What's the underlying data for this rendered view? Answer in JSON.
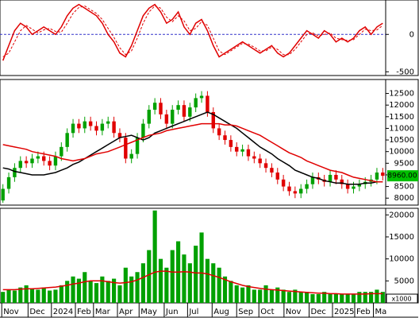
{
  "chart_data": [
    {
      "type": "line",
      "xlim": [
        0,
        66
      ],
      "ylim": [
        -550,
        460
      ],
      "yticks": [
        0,
        -500
      ],
      "hline": 0,
      "hline_color": "#3333cc",
      "series": [
        {
          "color": "#e00000",
          "values": [
            -350,
            -150,
            50,
            150,
            100,
            0,
            50,
            100,
            50,
            0,
            100,
            250,
            350,
            400,
            350,
            300,
            250,
            150,
            0,
            -100,
            -250,
            -300,
            -150,
            50,
            250,
            350,
            400,
            300,
            150,
            200,
            300,
            100,
            0,
            150,
            200,
            50,
            -150,
            -300,
            -250,
            -200,
            -150,
            -100,
            -150,
            -200,
            -250,
            -200,
            -150,
            -250,
            -300,
            -250,
            -150,
            -50,
            50,
            0,
            -50,
            50,
            0,
            -100,
            -50,
            -100,
            -50,
            50,
            100,
            0,
            100,
            150
          ]
        },
        {
          "color": "#e00000",
          "dash": true,
          "values": [
            -300,
            -250,
            -100,
            50,
            120,
            70,
            20,
            60,
            80,
            40,
            30,
            150,
            280,
            360,
            380,
            330,
            280,
            200,
            80,
            -40,
            -180,
            -270,
            -220,
            -50,
            150,
            300,
            380,
            350,
            230,
            170,
            250,
            180,
            50,
            80,
            170,
            120,
            -50,
            -220,
            -270,
            -220,
            -170,
            -120,
            -130,
            -170,
            -220,
            -220,
            -170,
            -200,
            -270,
            -270,
            -200,
            -100,
            0,
            20,
            -20,
            0,
            20,
            -50,
            -70,
            -80,
            -70,
            0,
            70,
            50,
            60,
            120
          ]
        }
      ]
    },
    {
      "type": "candlestick",
      "xlim": [
        0,
        66
      ],
      "ylim": [
        7700,
        13100
      ],
      "yticks": [
        8000,
        8500,
        9000,
        9500,
        10000,
        10500,
        11000,
        11500,
        12000,
        12500
      ],
      "up_color": "#00a000",
      "down_color": "#e00000",
      "open": [
        7900,
        8400,
        8900,
        9300,
        9600,
        9500,
        9700,
        9800,
        9600,
        9400,
        9800,
        10200,
        10800,
        11200,
        11000,
        11300,
        11100,
        10900,
        11200,
        11300,
        10800,
        10600,
        9700,
        9900,
        10600,
        11200,
        11800,
        12100,
        11600,
        11200,
        11800,
        12000,
        11500,
        11900,
        12300,
        12400,
        11700,
        11000,
        10700,
        10500,
        10200,
        10000,
        10100,
        9800,
        9700,
        9500,
        9300,
        9100,
        8800,
        8500,
        8300,
        8200,
        8400,
        8600,
        8900,
        8800,
        8700,
        9000,
        8800,
        8600,
        8400,
        8500,
        8600,
        8700,
        8800,
        9100
      ],
      "high": [
        8600,
        9100,
        9500,
        9800,
        9800,
        9900,
        10000,
        10000,
        9800,
        10000,
        10400,
        11000,
        11400,
        11400,
        11500,
        11500,
        11300,
        11400,
        11500,
        11500,
        11000,
        10800,
        10100,
        10800,
        11400,
        12000,
        12300,
        12300,
        11800,
        12000,
        12200,
        12200,
        12100,
        12500,
        12600,
        12600,
        11900,
        11200,
        10900,
        10700,
        10400,
        10300,
        10300,
        10000,
        9900,
        9700,
        9500,
        9300,
        9000,
        8700,
        8500,
        8600,
        8800,
        9100,
        9100,
        9000,
        9200,
        9200,
        9000,
        8800,
        8700,
        8800,
        8900,
        9000,
        9300,
        9300
      ],
      "low": [
        7800,
        8200,
        8700,
        9100,
        9300,
        9300,
        9500,
        9400,
        9200,
        9200,
        9600,
        10000,
        10600,
        10800,
        10800,
        10900,
        10700,
        10700,
        11000,
        10600,
        10400,
        9500,
        9500,
        9700,
        10400,
        11000,
        11600,
        11400,
        11000,
        11000,
        11600,
        11300,
        11300,
        11700,
        12100,
        11500,
        10800,
        10500,
        10300,
        10000,
        9800,
        9800,
        9600,
        9500,
        9300,
        9100,
        8900,
        8600,
        8300,
        8100,
        8000,
        8000,
        8200,
        8400,
        8600,
        8500,
        8500,
        8600,
        8400,
        8200,
        8200,
        8300,
        8400,
        8500,
        8600,
        8760
      ],
      "close": [
        8400,
        8900,
        9300,
        9600,
        9500,
        9700,
        9800,
        9600,
        9400,
        9800,
        10200,
        10800,
        11200,
        11000,
        11300,
        11100,
        10900,
        11200,
        11300,
        10800,
        10600,
        9700,
        9900,
        10600,
        11200,
        11800,
        12100,
        11600,
        11200,
        11800,
        12000,
        11500,
        11900,
        12300,
        12400,
        11700,
        11000,
        10700,
        10500,
        10200,
        10000,
        10100,
        9800,
        9700,
        9500,
        9300,
        9100,
        8800,
        8500,
        8300,
        8200,
        8400,
        8600,
        8900,
        8800,
        8700,
        9000,
        8800,
        8600,
        8400,
        8500,
        8600,
        8700,
        8800,
        9100,
        8960
      ],
      "last_price": {
        "value": 8960,
        "label": "8960.00"
      },
      "last_price_color": "#00c000",
      "series": [
        {
          "color": "#000000",
          "values": [
            9300,
            9250,
            9150,
            9100,
            9050,
            9000,
            9000,
            9000,
            9050,
            9100,
            9200,
            9300,
            9450,
            9550,
            9700,
            9850,
            10000,
            10150,
            10300,
            10450,
            10600,
            10650,
            10700,
            10600,
            10500,
            10600,
            10800,
            10900,
            11000,
            11100,
            11200,
            11300,
            11400,
            11500,
            11600,
            11700,
            11600,
            11450,
            11300,
            11150,
            11000,
            10800,
            10600,
            10400,
            10200,
            10050,
            9900,
            9700,
            9550,
            9400,
            9200,
            9100,
            9000,
            8900,
            8850,
            8750,
            8700,
            8650,
            8650,
            8600,
            8600,
            8600,
            8650,
            8650,
            8700,
            8700
          ]
        },
        {
          "color": "#e00000",
          "values": [
            10300,
            10250,
            10200,
            10150,
            10100,
            10000,
            9950,
            9900,
            9850,
            9800,
            9700,
            9650,
            9600,
            9650,
            9700,
            9800,
            9900,
            9950,
            10000,
            10100,
            10200,
            10300,
            10400,
            10500,
            10600,
            10700,
            10750,
            10800,
            10900,
            10950,
            11000,
            11050,
            11100,
            11150,
            11200,
            11200,
            11200,
            11200,
            11150,
            11150,
            11100,
            11000,
            10900,
            10800,
            10700,
            10550,
            10400,
            10250,
            10100,
            9950,
            9850,
            9750,
            9600,
            9500,
            9400,
            9300,
            9200,
            9150,
            9100,
            9000,
            8900,
            8850,
            8800,
            8750,
            8700,
            8700
          ]
        }
      ]
    },
    {
      "type": "bar",
      "xlim": [
        0,
        66
      ],
      "ylim": [
        0,
        21500
      ],
      "yticks": [
        5000,
        10000,
        15000,
        20000
      ],
      "y_unit": "x1000",
      "color": "#00a000",
      "values": [
        2500,
        3000,
        2800,
        3500,
        4000,
        3200,
        3000,
        3500,
        2800,
        3000,
        4000,
        5000,
        6000,
        5500,
        7000,
        5000,
        4500,
        6000,
        5000,
        5500,
        4000,
        8000,
        6000,
        7000,
        9000,
        12000,
        21000,
        10000,
        8000,
        12000,
        14000,
        11000,
        9000,
        13000,
        16000,
        10000,
        9000,
        8000,
        6000,
        5000,
        4000,
        3500,
        4000,
        3000,
        3000,
        4000,
        3000,
        3500,
        3000,
        2500,
        3000,
        2500,
        2500,
        2000,
        2000,
        2500,
        2000,
        2000,
        2000,
        2000,
        2000,
        2500,
        2500,
        2500,
        3000,
        2500
      ],
      "series": [
        {
          "color": "#e00000",
          "values": [
            3000,
            3000,
            3000,
            3100,
            3200,
            3200,
            3300,
            3400,
            3500,
            3600,
            3800,
            4000,
            4300,
            4500,
            4800,
            5000,
            5000,
            5000,
            4800,
            4600,
            4500,
            4600,
            4800,
            5200,
            5800,
            6400,
            7000,
            7200,
            7200,
            7000,
            7000,
            7100,
            7000,
            6800,
            6800,
            6600,
            6200,
            5800,
            5300,
            4800,
            4400,
            4000,
            3700,
            3500,
            3300,
            3100,
            3000,
            2900,
            2800,
            2700,
            2600,
            2500,
            2400,
            2300,
            2200,
            2200,
            2100,
            2100,
            2000,
            2000,
            2000,
            2000,
            2000,
            2100,
            2100,
            2100
          ]
        }
      ],
      "xticks": [
        {
          "value": 0.3,
          "label": "Nov"
        },
        {
          "value": 4.8,
          "label": "Dec"
        },
        {
          "value": 8.8,
          "label": "2024"
        },
        {
          "value": 12.9,
          "label": "Feb"
        },
        {
          "value": 16,
          "label": "Mar"
        },
        {
          "value": 20.1,
          "label": "Apr"
        },
        {
          "value": 23.8,
          "label": "May"
        },
        {
          "value": 28.1,
          "label": "Jun"
        },
        {
          "value": 32.1,
          "label": "Jul"
        },
        {
          "value": 36.3,
          "label": "Aug"
        },
        {
          "value": 40.5,
          "label": "Sep"
        },
        {
          "value": 44.3,
          "label": "Oct"
        },
        {
          "value": 48.6,
          "label": "Nov"
        },
        {
          "value": 52.9,
          "label": "Dec"
        },
        {
          "value": 56.9,
          "label": "2025"
        },
        {
          "value": 60.7,
          "label": "Feb"
        },
        {
          "value": 63.9,
          "label": "Ma"
        }
      ]
    }
  ]
}
